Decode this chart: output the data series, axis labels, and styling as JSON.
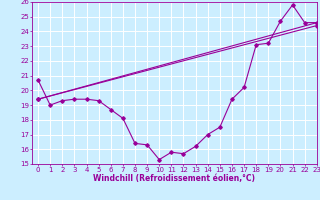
{
  "title": "",
  "xlabel": "Windchill (Refroidissement éolien,°C)",
  "ylabel": "",
  "background_color": "#cceeff",
  "grid_color": "#ffffff",
  "line_color": "#990099",
  "x_hours": [
    0,
    1,
    2,
    3,
    4,
    5,
    6,
    7,
    8,
    9,
    10,
    11,
    12,
    13,
    14,
    15,
    16,
    17,
    18,
    19,
    20,
    21,
    22,
    23
  ],
  "curve1": [
    20.7,
    19.0,
    19.3,
    19.4,
    19.4,
    19.3,
    18.7,
    18.1,
    16.4,
    16.3,
    15.3,
    15.8,
    15.7,
    16.2,
    17.0,
    17.5,
    19.4,
    20.2,
    23.1,
    23.2,
    24.7,
    25.8,
    24.6,
    24.6
  ],
  "curve2_x": [
    0,
    23
  ],
  "curve2_y": [
    19.4,
    24.4
  ],
  "curve3_x": [
    0,
    23
  ],
  "curve3_y": [
    19.4,
    24.6
  ],
  "ylim": [
    15,
    26
  ],
  "xlim": [
    -0.5,
    23
  ],
  "yticks": [
    15,
    16,
    17,
    18,
    19,
    20,
    21,
    22,
    23,
    24,
    25,
    26
  ],
  "xticks": [
    0,
    1,
    2,
    3,
    4,
    5,
    6,
    7,
    8,
    9,
    10,
    11,
    12,
    13,
    14,
    15,
    16,
    17,
    18,
    19,
    20,
    21,
    22,
    23
  ],
  "xlabel_fontsize": 5.5,
  "tick_fontsize": 5.0,
  "marker": "D",
  "markersize": 1.8,
  "linewidth": 0.8
}
